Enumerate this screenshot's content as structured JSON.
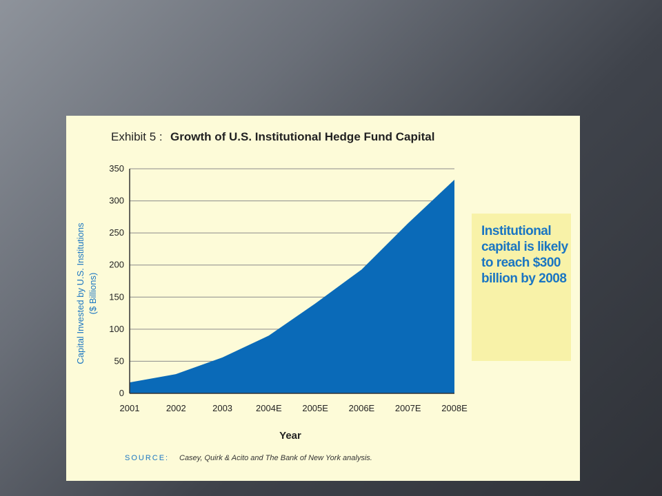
{
  "chart_data": {
    "type": "area",
    "exhibit_label": "Exhibit 5 :",
    "title": "Growth of U.S. Institutional Hedge Fund Capital",
    "xlabel": "Year",
    "ylabel_line1": "Capital Invested by U.S. Institutions",
    "ylabel_line2": "($ Billions)",
    "categories": [
      "2001",
      "2002",
      "2003",
      "2004E",
      "2005E",
      "2006E",
      "2007E",
      "2008E"
    ],
    "values": [
      17,
      30,
      56,
      90,
      140,
      193,
      265,
      333
    ],
    "ylim": [
      0,
      350
    ],
    "yticks": [
      "0",
      "50",
      "100",
      "150",
      "200",
      "250",
      "300",
      "350"
    ],
    "grid": true,
    "color": "#0a6ab8",
    "source_label": "SOURCE:",
    "source_text": "Casey, Quirk & Acito and The Bank of New York analysis."
  },
  "callout": {
    "text": "Institutional capital is likely to reach $300 billion by 2008"
  }
}
